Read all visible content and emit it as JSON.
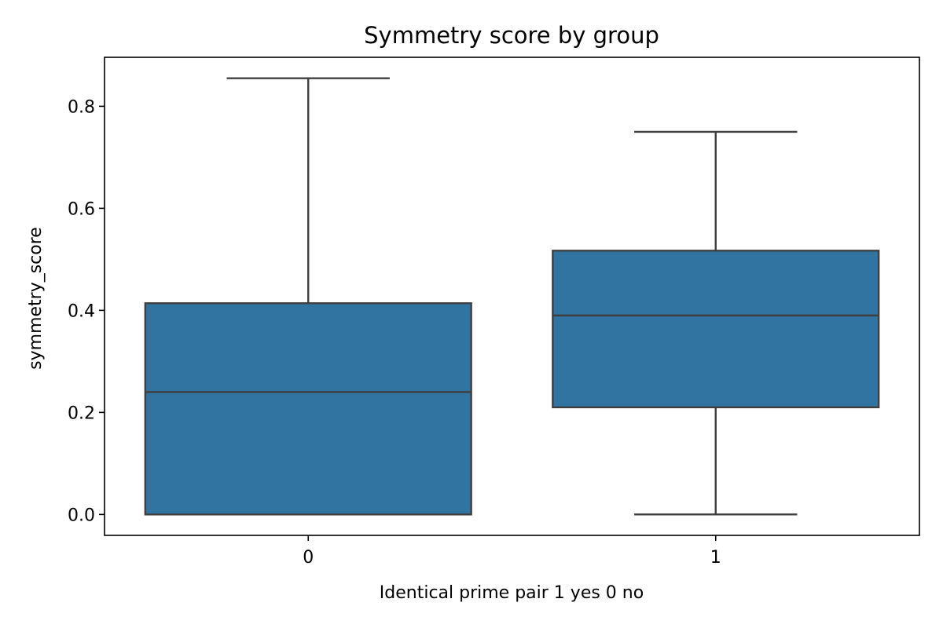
{
  "chart_data": {
    "type": "box",
    "title": "Symmetry score by group",
    "xlabel": "Identical prime pair 1 yes 0 no",
    "ylabel": "symmetry_score",
    "categories": [
      "0",
      "1"
    ],
    "boxes": [
      {
        "category": "0",
        "whisker_low": 0.0,
        "q1": 0.0,
        "median": 0.24,
        "q3": 0.414,
        "whisker_high": 0.855
      },
      {
        "category": "1",
        "whisker_low": 0.0,
        "q1": 0.21,
        "median": 0.39,
        "q3": 0.517,
        "whisker_high": 0.75
      }
    ],
    "ylim": [
      -0.041,
      0.896
    ],
    "yticks": [
      0.0,
      0.2,
      0.4,
      0.6,
      0.8
    ],
    "ytick_labels": [
      "0.0",
      "0.2",
      "0.4",
      "0.6",
      "0.8"
    ],
    "grid": false,
    "colors": {
      "box_fill": "#3274a1",
      "box_line": "#3f3f3f",
      "axis": "#000000"
    }
  }
}
